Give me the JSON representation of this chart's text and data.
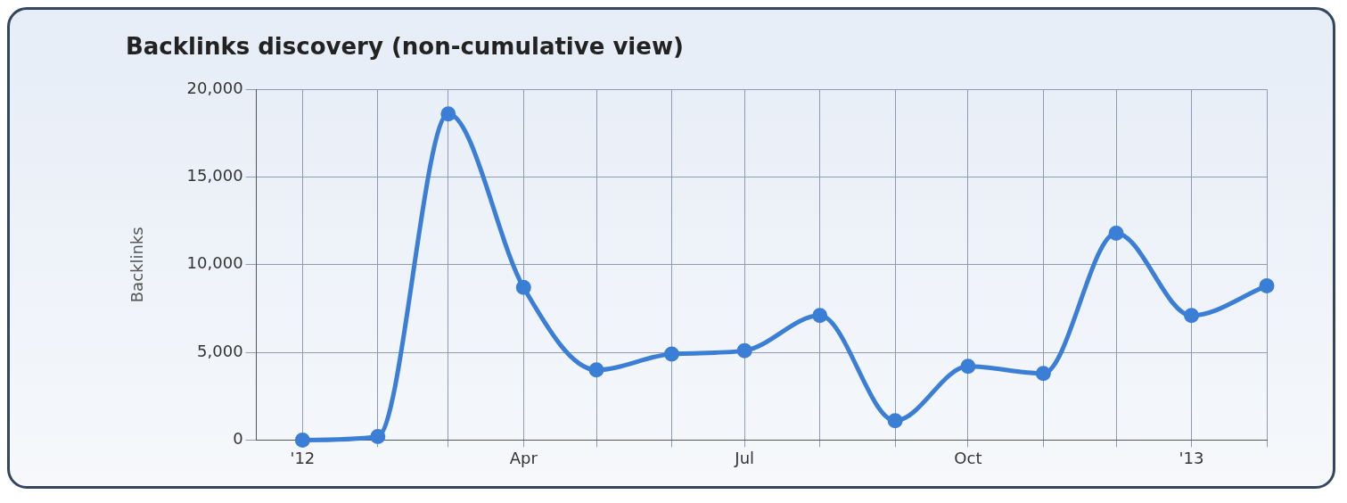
{
  "chart_data": {
    "type": "line",
    "title": "Backlinks discovery (non-cumulative view)",
    "ylabel": "Backlinks",
    "x": [
      "2012-01",
      "2012-02",
      "2012-03",
      "2012-04",
      "2012-05",
      "2012-06",
      "2012-07",
      "2012-08",
      "2012-09",
      "2012-10",
      "2012-11",
      "2012-12",
      "2013-01",
      "2013-02"
    ],
    "series": [
      {
        "color": "#3a7fd5",
        "values": [
          0,
          200,
          18600,
          8700,
          4000,
          4900,
          5100,
          7100,
          1100,
          4200,
          3800,
          11800,
          7100,
          8800
        ]
      }
    ],
    "xlim": [
      "2011-12-13",
      "2013-02"
    ],
    "xticks": [
      {
        "value": "2012-01",
        "label": "'12"
      },
      {
        "value": "2012-02",
        "label": null
      },
      {
        "value": "2012-03",
        "label": null
      },
      {
        "value": "2012-04",
        "label": "Apr"
      },
      {
        "value": "2012-05",
        "label": null
      },
      {
        "value": "2012-06",
        "label": null
      },
      {
        "value": "2012-07",
        "label": "Jul"
      },
      {
        "value": "2012-08",
        "label": null
      },
      {
        "value": "2012-09",
        "label": null
      },
      {
        "value": "2012-10",
        "label": "Oct"
      },
      {
        "value": "2012-11",
        "label": null
      },
      {
        "value": "2012-12",
        "label": null
      },
      {
        "value": "2013-01",
        "label": "'13"
      },
      {
        "value": "2013-02",
        "label": null
      }
    ],
    "ylim": [
      0,
      20000
    ],
    "yticks": [
      0,
      {
        "value": 5000,
        "label": "5,000"
      },
      {
        "value": 10000,
        "label": "10,000"
      },
      {
        "value": 15000,
        "label": "15,000"
      },
      {
        "value": 20000,
        "label": "20,000"
      }
    ],
    "grid": true,
    "legend": false,
    "marker": "circle",
    "line_style": "solid"
  }
}
